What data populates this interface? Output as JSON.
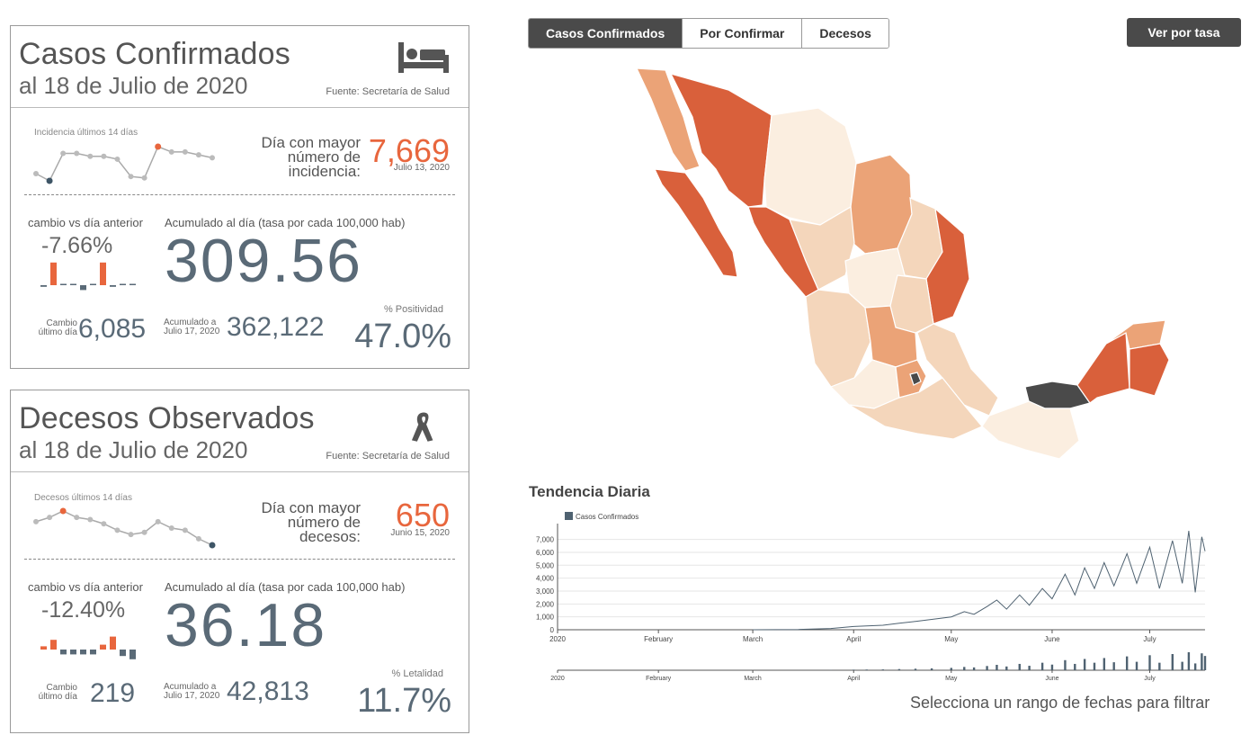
{
  "confirmed": {
    "title": "Casos Confirmados",
    "subtitle": "al 18 de Julio de 2020",
    "source": "Fuente: Secretaría de Salud",
    "icon": "bed-icon",
    "spark_label": "Incidencia últimos 14 días",
    "spark_values": [
      5800,
      5300,
      7200,
      7200,
      7000,
      7000,
      6800,
      5600,
      5500,
      7669,
      7300,
      7300,
      7100,
      6900
    ],
    "spark_highlight_max": 9,
    "spark_highlight_min": 1,
    "peak_label": "Día con mayor número de incidencia:",
    "peak_value": "7,669",
    "peak_date": "Julio 13, 2020",
    "change_label": "cambio vs día anterior",
    "change_value": "-7.66%",
    "change_bars": [
      -1,
      14,
      0,
      0,
      -3,
      0,
      14,
      -1,
      0,
      0
    ],
    "acc_label": "Acumulado al día (tasa por cada 100,000 hab)",
    "acc_value": "309.56",
    "last_day_label": "Cambio último día",
    "last_day_value": "6,085",
    "acc_prev_label": "Acumulado a Julio 17, 2020",
    "acc_prev_value": "362,122",
    "pct_label": "% Positividad",
    "pct_value": "47.0%"
  },
  "deaths": {
    "title": "Decesos Observados",
    "subtitle": "al 18 de Julio de 2020",
    "source": "Fuente: Secretaría de Salud",
    "icon": "ribbon-icon",
    "spark_label": "Decesos últimos 14 días",
    "spark_values": [
      600,
      620,
      650,
      620,
      610,
      590,
      560,
      540,
      550,
      600,
      570,
      560,
      520,
      490
    ],
    "spark_highlight_max": 2,
    "spark_highlight_min": 13,
    "peak_label": "Día con mayor número de decesos:",
    "peak_value": "650",
    "peak_date": "Junio 15, 2020",
    "change_label": "cambio vs día anterior",
    "change_value": "-12.40%",
    "change_bars": [
      2,
      6,
      -3,
      -3,
      -3,
      -3,
      3,
      8,
      -4,
      -6
    ],
    "acc_label": "Acumulado al día (tasa por cada 100,000 hab)",
    "acc_value": "36.18",
    "last_day_label": "Cambio último día",
    "last_day_value": "219",
    "acc_prev_label": "Acumulado a Julio 17, 2020",
    "acc_prev_value": "42,813",
    "pct_label": "% Letalidad",
    "pct_value": "11.7%"
  },
  "tabs": [
    {
      "label": "Casos Confirmados",
      "active": true
    },
    {
      "label": "Por Confirmar",
      "active": false
    },
    {
      "label": "Decesos",
      "active": false
    }
  ],
  "rate_button": "Ver por tasa",
  "map_colors": {
    "high": "#d9603b",
    "mid": "#eba377",
    "low": "#f4d6bb",
    "lowest": "#fbeee0",
    "selected": "#4a4a4a"
  },
  "trend": {
    "title": "Tendencia Diaria",
    "filter_note": "Selecciona un rango de fechas para filtrar"
  },
  "chart_data": {
    "type": "line",
    "legend": [
      "Casos Confirmados"
    ],
    "series": [
      {
        "name": "Casos Confirmados",
        "color": "#4f6271"
      }
    ],
    "y_ticks": [
      "0",
      "1,000",
      "2,000",
      "3,000",
      "4,000",
      "5,000",
      "6,000",
      "7,000"
    ],
    "x_ticks": [
      "2020",
      "February",
      "March",
      "April",
      "May",
      "June",
      "July"
    ],
    "ylim": [
      0,
      7669
    ],
    "x_start": "2020-01-01",
    "x_end": "2020-07-18",
    "points": [
      [
        "2020-03-01",
        0
      ],
      [
        "2020-03-15",
        20
      ],
      [
        "2020-03-25",
        100
      ],
      [
        "2020-04-01",
        250
      ],
      [
        "2020-04-05",
        300
      ],
      [
        "2020-04-10",
        350
      ],
      [
        "2020-04-15",
        500
      ],
      [
        "2020-04-20",
        650
      ],
      [
        "2020-04-25",
        800
      ],
      [
        "2020-05-01",
        1000
      ],
      [
        "2020-05-05",
        1400
      ],
      [
        "2020-05-08",
        1200
      ],
      [
        "2020-05-12",
        1800
      ],
      [
        "2020-05-15",
        2300
      ],
      [
        "2020-05-18",
        1600
      ],
      [
        "2020-05-22",
        2700
      ],
      [
        "2020-05-25",
        1900
      ],
      [
        "2020-05-29",
        3200
      ],
      [
        "2020-06-01",
        2400
      ],
      [
        "2020-06-05",
        4300
      ],
      [
        "2020-06-08",
        2700
      ],
      [
        "2020-06-11",
        4800
      ],
      [
        "2020-06-14",
        3200
      ],
      [
        "2020-06-17",
        5200
      ],
      [
        "2020-06-20",
        3400
      ],
      [
        "2020-06-24",
        5900
      ],
      [
        "2020-06-27",
        3600
      ],
      [
        "2020-07-01",
        6400
      ],
      [
        "2020-07-04",
        3200
      ],
      [
        "2020-07-08",
        6900
      ],
      [
        "2020-07-11",
        3600
      ],
      [
        "2020-07-13",
        7669
      ],
      [
        "2020-07-15",
        2900
      ],
      [
        "2020-07-17",
        7200
      ],
      [
        "2020-07-18",
        6085
      ]
    ]
  }
}
